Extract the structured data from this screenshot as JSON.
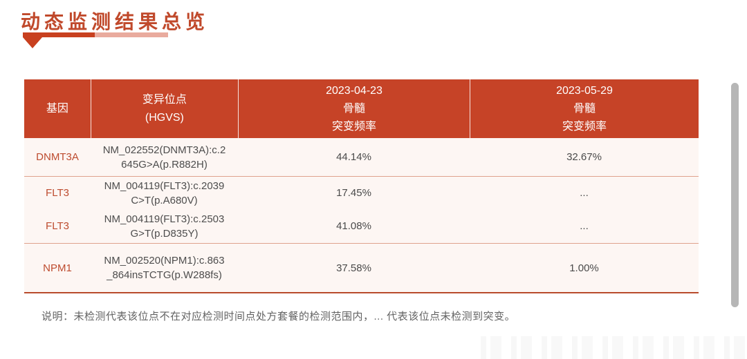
{
  "header": {
    "title": "动态监测结果总览"
  },
  "colors": {
    "accent": "#c64327",
    "underline_dark": "#c8401f",
    "underline_light": "#e9ab9e",
    "row_background": "#fdf6f3",
    "row_separator": "#dfa18c",
    "table_bottom_border": "#b84a2b",
    "gene_text": "#bd4b2e",
    "body_text": "#4a4a4a",
    "note_text": "#636363",
    "scrollbar_thumb": "#b6b6b6"
  },
  "table": {
    "columns": [
      {
        "lines": [
          "基因"
        ]
      },
      {
        "lines": [
          "变异位点",
          "(HGVS)"
        ]
      },
      {
        "lines": [
          "2023-04-23",
          "骨髓",
          "突变频率"
        ]
      },
      {
        "lines": [
          "2023-05-29",
          "骨髓",
          "突变频率"
        ]
      }
    ],
    "rows": [
      {
        "gene": "DNMT3A",
        "hgvs": "NM_022552(DNMT3A):c.2645G>A(p.R882H)",
        "freq_2023_04_23": "44.14%",
        "freq_2023_05_29": "32.67%"
      },
      {
        "gene": "FLT3",
        "hgvs": "NM_004119(FLT3):c.2039C>T(p.A680V)",
        "freq_2023_04_23": "17.45%",
        "freq_2023_05_29": "..."
      },
      {
        "gene": "FLT3",
        "hgvs": "NM_004119(FLT3):c.2503G>T(p.D835Y)",
        "freq_2023_04_23": "41.08%",
        "freq_2023_05_29": "..."
      },
      {
        "gene": "NPM1",
        "hgvs": "NM_002520(NPM1):c.863_864insTCTG(p.W288fs)",
        "freq_2023_04_23": "37.58%",
        "freq_2023_05_29": "1.00%"
      }
    ]
  },
  "note": {
    "text": "说明：未检测代表该位点不在对应检测时间点处方套餐的检测范围内，... 代表该位点未检测到突变。"
  }
}
